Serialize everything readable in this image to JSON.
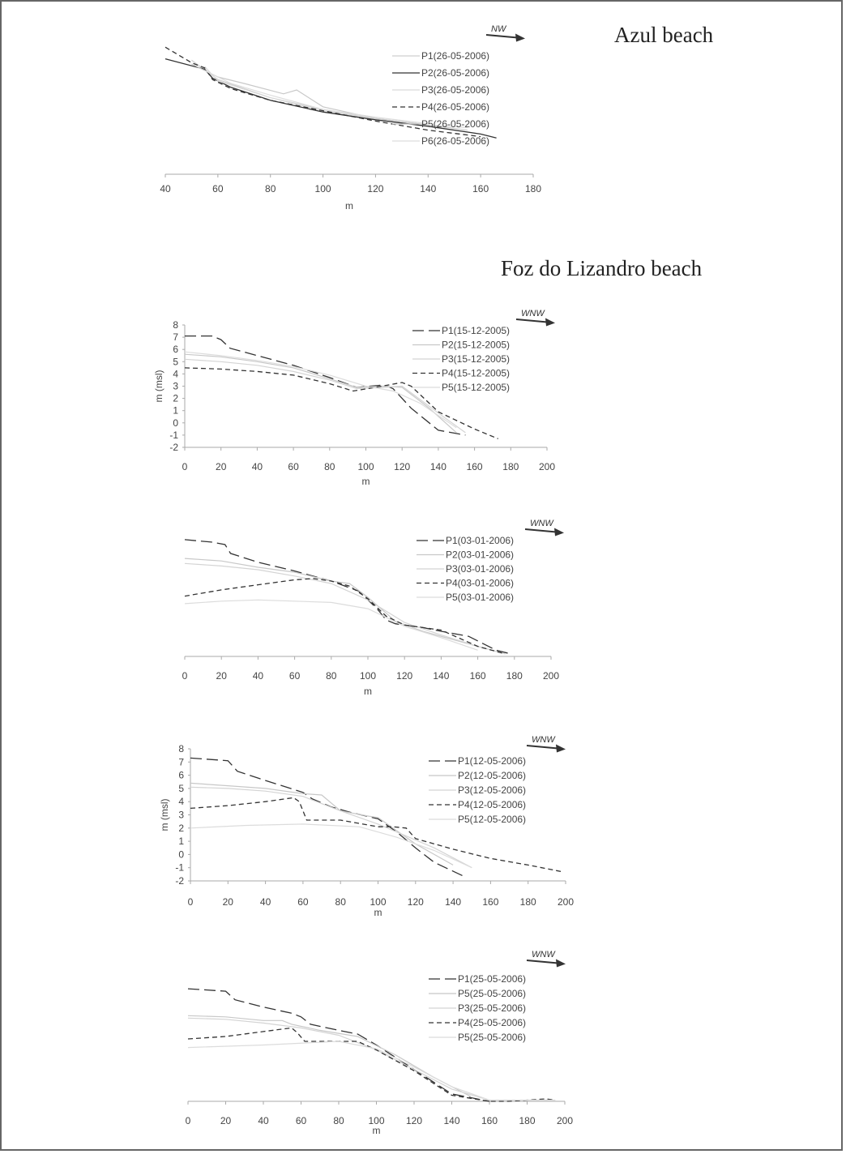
{
  "beaches": {
    "azul": "Azul beach",
    "foz": "Foz do Lizandro beach"
  },
  "chart_data": [
    {
      "type": "line",
      "title": "Azul beach",
      "direction": "NW",
      "xlabel": "m",
      "ylabel": "",
      "xlim": [
        40,
        180
      ],
      "xticks": [
        40,
        60,
        80,
        100,
        120,
        140,
        160,
        180
      ],
      "ylim": [
        -2,
        8
      ],
      "yticks": [],
      "series": [
        {
          "name": "P1(26-05-2006)",
          "style": "faint",
          "color": "#cfcfcf",
          "x": [
            50,
            60,
            80,
            100,
            120,
            140,
            155
          ],
          "y": [
            6.8,
            5.3,
            3.9,
            3.0,
            2.3,
            1.8,
            1.4
          ]
        },
        {
          "name": "P2(26-05-2006)",
          "style": "solid",
          "color": "#333333",
          "x": [
            40,
            55,
            58,
            65,
            80,
            100,
            120,
            140,
            160,
            166
          ],
          "y": [
            6.9,
            6.1,
            5.4,
            4.7,
            3.7,
            2.8,
            2.2,
            1.7,
            1.1,
            0.8
          ]
        },
        {
          "name": "P3(26-05-2006)",
          "style": "faint",
          "color": "#d9d9d9",
          "x": [
            55,
            60,
            80,
            100,
            120,
            140,
            155
          ],
          "y": [
            6.3,
            5.2,
            3.9,
            2.9,
            2.3,
            1.8,
            1.6
          ]
        },
        {
          "name": "P4(26-05-2006)",
          "style": "dashed",
          "color": "#333333",
          "x": [
            40,
            50,
            55,
            58,
            65,
            80,
            100,
            120,
            140,
            160
          ],
          "y": [
            7.8,
            6.6,
            6.2,
            5.3,
            4.6,
            3.7,
            2.9,
            2.1,
            1.4,
            0.9
          ]
        },
        {
          "name": "P5(26-05-2006)",
          "style": "faint",
          "color": "#c8c8c8",
          "x": [
            50,
            60,
            70,
            85,
            90,
            100,
            120,
            140
          ],
          "y": [
            6.5,
            5.5,
            5.0,
            4.2,
            4.5,
            3.2,
            2.3,
            1.8
          ]
        },
        {
          "name": "P6(26-05-2006)",
          "style": "faint",
          "color": "#dddddd",
          "x": [
            55,
            65,
            80,
            100,
            120,
            140
          ],
          "y": [
            6.0,
            5.0,
            4.1,
            3.0,
            2.4,
            1.9
          ]
        }
      ]
    },
    {
      "type": "line",
      "title": "",
      "direction": "WNW",
      "xlabel": "m",
      "ylabel": "m (msl)",
      "xlim": [
        0,
        200
      ],
      "xticks": [
        0,
        20,
        40,
        60,
        80,
        100,
        120,
        140,
        160,
        180,
        200
      ],
      "ylim": [
        -2,
        8
      ],
      "yticks": [
        -2,
        -1,
        0,
        1,
        2,
        3,
        4,
        5,
        6,
        7,
        8
      ],
      "series": [
        {
          "name": "P1(15-12-2005)",
          "style": "longdash",
          "color": "#333333",
          "x": [
            0,
            15,
            20,
            25,
            40,
            60,
            80,
            95,
            110,
            115,
            125,
            140,
            155
          ],
          "y": [
            7.1,
            7.1,
            6.8,
            6.1,
            5.5,
            4.7,
            3.7,
            2.9,
            3.1,
            2.8,
            1.2,
            -0.6,
            -1.0
          ]
        },
        {
          "name": "P2(15-12-2005)",
          "style": "faint",
          "color": "#c8c8c8",
          "x": [
            0,
            20,
            40,
            60,
            80,
            95,
            110,
            120,
            135,
            150
          ],
          "y": [
            5.6,
            5.4,
            5.0,
            4.5,
            3.6,
            2.9,
            3.0,
            2.9,
            1.2,
            -0.8
          ]
        },
        {
          "name": "P3(15-12-2005)",
          "style": "faint",
          "color": "#d4d4d4",
          "x": [
            0,
            20,
            40,
            60,
            80,
            95,
            110,
            120,
            140,
            155
          ],
          "y": [
            5.2,
            5.0,
            4.7,
            4.2,
            3.5,
            2.8,
            2.9,
            3.0,
            0.8,
            -0.8
          ]
        },
        {
          "name": "P4(15-12-2005)",
          "style": "dashed",
          "color": "#333333",
          "x": [
            0,
            20,
            40,
            60,
            80,
            93,
            105,
            120,
            125,
            140,
            160,
            173
          ],
          "y": [
            4.5,
            4.4,
            4.2,
            3.9,
            3.2,
            2.6,
            2.9,
            3.3,
            3.0,
            0.9,
            -0.5,
            -1.3
          ]
        },
        {
          "name": "P5(15-12-2005)",
          "style": "faint",
          "color": "#dcdcdc",
          "x": [
            0,
            20,
            40,
            60,
            80,
            100,
            115,
            130,
            150
          ],
          "y": [
            5.8,
            5.5,
            5.1,
            4.6,
            3.9,
            3.0,
            2.6,
            1.6,
            -0.4
          ]
        }
      ]
    },
    {
      "type": "line",
      "title": "",
      "direction": "WNW",
      "xlabel": "m",
      "ylabel": "",
      "xlim": [
        0,
        200
      ],
      "xticks": [
        0,
        20,
        40,
        60,
        80,
        100,
        120,
        140,
        160,
        180,
        200
      ],
      "ylim": [
        -2,
        8
      ],
      "yticks": [],
      "series": [
        {
          "name": "P1(03-01-2006)",
          "style": "longdash",
          "color": "#333333",
          "x": [
            0,
            15,
            22,
            25,
            40,
            60,
            80,
            95,
            105,
            110,
            115,
            130,
            140,
            155,
            170,
            178
          ],
          "y": [
            7.3,
            7.1,
            6.9,
            6.2,
            5.5,
            4.8,
            4.0,
            3.2,
            1.8,
            0.9,
            0.6,
            0.3,
            0.0,
            -0.4,
            -1.5,
            -1.8
          ]
        },
        {
          "name": "P2(03-01-2006)",
          "style": "faint",
          "color": "#c8c8c8",
          "x": [
            0,
            20,
            40,
            60,
            80,
            90,
            100,
            115,
            130,
            150,
            170
          ],
          "y": [
            5.8,
            5.6,
            5.1,
            4.7,
            4.0,
            3.8,
            2.7,
            0.8,
            0.0,
            -0.8,
            -1.6
          ]
        },
        {
          "name": "P3(03-01-2006)",
          "style": "faint",
          "color": "#d4d4d4",
          "x": [
            0,
            20,
            40,
            60,
            80,
            100,
            120,
            140,
            160,
            175
          ],
          "y": [
            5.4,
            5.2,
            4.9,
            4.4,
            3.8,
            2.5,
            0.7,
            -0.3,
            -1.2,
            -1.8
          ]
        },
        {
          "name": "P4(03-01-2006)",
          "style": "dashed",
          "color": "#333333",
          "x": [
            0,
            20,
            40,
            60,
            70,
            80,
            90,
            100,
            110,
            120,
            140,
            160,
            175
          ],
          "y": [
            2.8,
            3.3,
            3.7,
            4.1,
            4.2,
            4.0,
            3.6,
            2.6,
            1.2,
            0.5,
            0.1,
            -1.2,
            -1.8
          ]
        },
        {
          "name": "P5(03-01-2006)",
          "style": "faint",
          "color": "#dcdcdc",
          "x": [
            0,
            20,
            40,
            60,
            80,
            100,
            120,
            140,
            160
          ],
          "y": [
            2.2,
            2.4,
            2.5,
            2.4,
            2.3,
            1.8,
            0.4,
            -0.5,
            -1.5
          ]
        }
      ]
    },
    {
      "type": "line",
      "title": "",
      "direction": "WNW",
      "xlabel": "m",
      "ylabel": "m (msl)",
      "xlim": [
        0,
        200
      ],
      "xticks": [
        0,
        20,
        40,
        60,
        80,
        100,
        120,
        140,
        160,
        180,
        200
      ],
      "ylim": [
        -2,
        8
      ],
      "yticks": [
        -2,
        -1,
        0,
        1,
        2,
        3,
        4,
        5,
        6,
        7,
        8
      ],
      "series": [
        {
          "name": "P1(12-05-2006)",
          "style": "longdash",
          "color": "#333333",
          "x": [
            0,
            20,
            25,
            40,
            60,
            65,
            75,
            85,
            100,
            110,
            120,
            130,
            145
          ],
          "y": [
            7.3,
            7.1,
            6.3,
            5.6,
            4.7,
            4.2,
            3.6,
            3.2,
            2.7,
            1.7,
            0.5,
            -0.6,
            -1.6
          ]
        },
        {
          "name": "P2(12-05-2006)",
          "style": "faint",
          "color": "#c8c8c8",
          "x": [
            0,
            20,
            40,
            60,
            70,
            80,
            95,
            100,
            120,
            140
          ],
          "y": [
            5.4,
            5.2,
            5.0,
            4.6,
            4.5,
            3.3,
            2.9,
            2.8,
            0.8,
            -0.8
          ]
        },
        {
          "name": "P3(12-05-2006)",
          "style": "faint",
          "color": "#d4d4d4",
          "x": [
            0,
            20,
            40,
            60,
            80,
            100,
            115,
            130,
            150
          ],
          "y": [
            5.1,
            5.0,
            4.8,
            4.4,
            3.3,
            2.3,
            1.4,
            0.5,
            -1.0
          ]
        },
        {
          "name": "P4(12-05-2006)",
          "style": "dashed",
          "color": "#333333",
          "x": [
            0,
            20,
            40,
            55,
            58,
            62,
            80,
            100,
            108,
            115,
            120,
            140,
            160,
            180,
            198
          ],
          "y": [
            3.5,
            3.7,
            4.0,
            4.3,
            4.0,
            2.6,
            2.6,
            2.1,
            2.1,
            2.0,
            1.2,
            0.4,
            -0.3,
            -0.8,
            -1.3
          ]
        },
        {
          "name": "P5(12-05-2006)",
          "style": "faint",
          "color": "#dcdcdc",
          "x": [
            0,
            30,
            60,
            90,
            110,
            130,
            150
          ],
          "y": [
            2.0,
            2.2,
            2.3,
            2.1,
            1.3,
            0.3,
            -1.0
          ]
        }
      ]
    },
    {
      "type": "line",
      "title": "",
      "direction": "WNW",
      "xlabel": "m",
      "ylabel": "",
      "xlim": [
        0,
        200
      ],
      "xticks": [
        0,
        20,
        40,
        60,
        80,
        100,
        120,
        140,
        160,
        180,
        200
      ],
      "ylim": [
        -2,
        8
      ],
      "yticks": [],
      "series": [
        {
          "name": "P1(25-05-2006)",
          "style": "longdash",
          "color": "#333333",
          "x": [
            0,
            20,
            25,
            40,
            55,
            60,
            65,
            80,
            90,
            100,
            120,
            140,
            160
          ],
          "y": [
            7.2,
            7.0,
            6.3,
            5.7,
            5.2,
            4.9,
            4.3,
            3.8,
            3.5,
            2.6,
            0.6,
            -1.4,
            -2.0
          ]
        },
        {
          "name": "P5(25-05-2006)",
          "style": "faint",
          "color": "#c8c8c8",
          "x": [
            0,
            20,
            40,
            50,
            55,
            70,
            90,
            110,
            130,
            150
          ],
          "y": [
            5.0,
            4.9,
            4.6,
            4.6,
            4.3,
            3.8,
            3.3,
            1.8,
            0.0,
            -1.6
          ]
        },
        {
          "name": "P3(25-05-2006)",
          "style": "faint",
          "color": "#d4d4d4",
          "x": [
            0,
            20,
            40,
            60,
            80,
            100,
            120,
            140,
            160
          ],
          "y": [
            4.8,
            4.7,
            4.4,
            4.0,
            3.4,
            2.2,
            0.6,
            -1.0,
            -1.9
          ]
        },
        {
          "name": "P4(25-05-2006)",
          "style": "dashed",
          "color": "#333333",
          "x": [
            0,
            20,
            40,
            55,
            58,
            62,
            80,
            90,
            100,
            120,
            140,
            160,
            170,
            180,
            190,
            195
          ],
          "y": [
            3.1,
            3.3,
            3.7,
            4.0,
            3.6,
            2.9,
            2.9,
            2.9,
            2.2,
            0.5,
            -1.5,
            -2.0,
            -2.0,
            -1.9,
            -1.8,
            -1.9
          ]
        },
        {
          "name": "P5(25-05-2006)",
          "style": "faint",
          "color": "#dcdcdc",
          "x": [
            0,
            40,
            80,
            100,
            120,
            140,
            160,
            175,
            195
          ],
          "y": [
            2.4,
            2.6,
            2.9,
            2.3,
            0.8,
            -0.8,
            -1.9,
            -1.9,
            -1.9
          ]
        }
      ]
    }
  ]
}
